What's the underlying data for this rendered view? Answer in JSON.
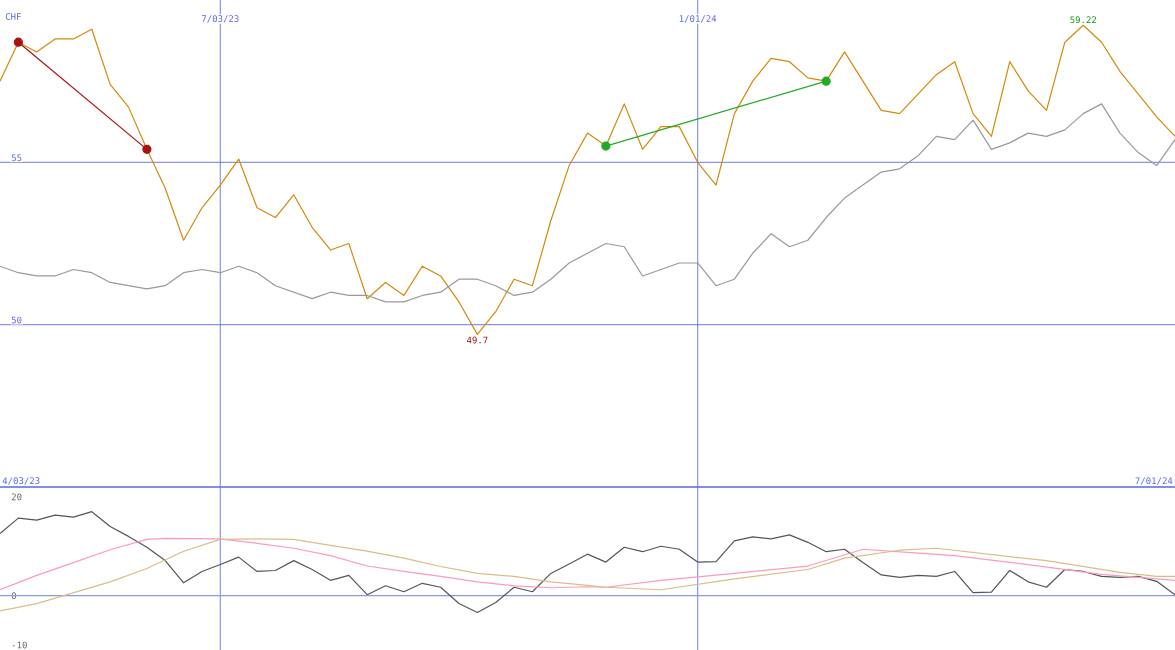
{
  "chart_data": [
    {
      "type": "line",
      "ylabel": "CHF",
      "xlim": [
        "2023-04-10",
        "2024-07-01"
      ],
      "ylim": [
        45,
        60
      ],
      "xticks": [
        {
          "value": "2023-07-03",
          "label": "7/03/23"
        },
        {
          "value": "2024-01-01",
          "label": "1/01/24"
        }
      ],
      "yticks": [
        50,
        55
      ],
      "grid": true,
      "x": [
        "2023-04-10",
        "2023-04-17",
        "2023-04-24",
        "2023-05-01",
        "2023-05-08",
        "2023-05-15",
        "2023-05-22",
        "2023-05-29",
        "2023-06-05",
        "2023-06-12",
        "2023-06-19",
        "2023-06-26",
        "2023-07-03",
        "2023-07-10",
        "2023-07-17",
        "2023-07-24",
        "2023-07-31",
        "2023-08-07",
        "2023-08-14",
        "2023-08-21",
        "2023-08-28",
        "2023-09-04",
        "2023-09-11",
        "2023-09-18",
        "2023-09-25",
        "2023-10-02",
        "2023-10-09",
        "2023-10-16",
        "2023-10-23",
        "2023-10-30",
        "2023-11-06",
        "2023-11-13",
        "2023-11-20",
        "2023-11-27",
        "2023-12-04",
        "2023-12-11",
        "2023-12-18",
        "2023-12-25",
        "2024-01-01",
        "2024-01-08",
        "2024-01-15",
        "2024-01-22",
        "2024-01-29",
        "2024-02-05",
        "2024-02-12",
        "2024-02-19",
        "2024-02-26",
        "2024-03-04",
        "2024-03-11",
        "2024-03-18",
        "2024-03-25",
        "2024-04-01",
        "2024-04-08",
        "2024-04-15",
        "2024-04-22",
        "2024-04-29",
        "2024-05-06",
        "2024-05-13",
        "2024-05-20",
        "2024-05-27",
        "2024-06-03",
        "2024-06-10",
        "2024-06-17",
        "2024-06-24",
        "2024-07-01"
      ],
      "series": [
        {
          "color": "#d4890a",
          "values": [
            57.5,
            58.7,
            58.4,
            58.8,
            58.8,
            59.1,
            57.4,
            56.7,
            55.4,
            54.2,
            52.6,
            53.6,
            54.3,
            55.1,
            53.6,
            53.3,
            54.0,
            53.0,
            52.3,
            52.5,
            50.8,
            51.3,
            50.9,
            51.8,
            51.5,
            50.7,
            49.7,
            50.4,
            51.4,
            51.2,
            53.2,
            54.9,
            55.9,
            55.5,
            56.8,
            55.4,
            56.1,
            56.1,
            55.0,
            54.3,
            56.5,
            57.5,
            58.2,
            58.1,
            57.6,
            57.5,
            58.4,
            57.5,
            56.6,
            56.5,
            57.1,
            57.7,
            58.1,
            56.5,
            55.8,
            58.1,
            57.2,
            56.6,
            58.7,
            59.22,
            58.7,
            57.8,
            57.1,
            56.4,
            55.8
          ]
        },
        {
          "color": "#999999",
          "values": [
            51.8,
            51.6,
            51.5,
            51.5,
            51.7,
            51.6,
            51.3,
            51.2,
            51.1,
            51.2,
            51.6,
            51.7,
            51.6,
            51.8,
            51.6,
            51.2,
            51.0,
            50.8,
            51.0,
            50.9,
            50.9,
            50.7,
            50.7,
            50.9,
            51.0,
            51.4,
            51.4,
            51.2,
            50.9,
            51.0,
            51.4,
            51.9,
            52.2,
            52.5,
            52.4,
            51.5,
            51.7,
            51.9,
            51.9,
            51.2,
            51.4,
            52.2,
            52.8,
            52.4,
            52.6,
            53.3,
            53.9,
            54.3,
            54.7,
            54.8,
            55.2,
            55.8,
            55.7,
            56.3,
            55.4,
            55.6,
            55.9,
            55.8,
            56.0,
            56.5,
            56.8,
            55.9,
            55.3,
            54.9,
            55.7
          ]
        },
        {
          "color": "#aa1111",
          "x": [
            "2023-04-17",
            "2023-06-05"
          ],
          "values": [
            58.7,
            55.4
          ],
          "marker": "circle"
        },
        {
          "color": "#22aa22",
          "x": [
            "2023-11-27",
            "2024-02-19"
          ],
          "values": [
            55.5,
            57.5
          ],
          "marker": "circle"
        }
      ],
      "annotations": [
        {
          "text": "59.22",
          "x": "2024-05-27",
          "y": 59.22
        },
        {
          "text": "49.7",
          "x": "2023-10-09",
          "y": 49.7
        }
      ]
    },
    {
      "type": "line",
      "xlim": [
        "2023-04-10",
        "2024-07-01"
      ],
      "ylim": [
        -11,
        22
      ],
      "xticks": [
        {
          "value": "2023-07-03",
          "label": null
        },
        {
          "value": "2024-01-01",
          "label": null
        }
      ],
      "yticks": [
        -10,
        0,
        20
      ],
      "grid": "x",
      "tick_labels": "y",
      "ref_lines": [
        {
          "axis": "y",
          "value": 0,
          "color": "#8899ee"
        }
      ],
      "x": [
        "2023-04-10",
        "2023-04-17",
        "2023-04-24",
        "2023-05-01",
        "2023-05-08",
        "2023-05-15",
        "2023-05-22",
        "2023-05-29",
        "2023-06-05",
        "2023-06-12",
        "2023-06-19",
        "2023-06-26",
        "2023-07-03",
        "2023-07-10",
        "2023-07-17",
        "2023-07-24",
        "2023-07-31",
        "2023-08-07",
        "2023-08-14",
        "2023-08-21",
        "2023-08-28",
        "2023-09-04",
        "2023-09-11",
        "2023-09-18",
        "2023-09-25",
        "2023-10-02",
        "2023-10-09",
        "2023-10-16",
        "2023-10-23",
        "2023-10-30",
        "2023-11-06",
        "2023-11-13",
        "2023-11-20",
        "2023-11-27",
        "2023-12-04",
        "2023-12-11",
        "2023-12-18",
        "2023-12-25",
        "2024-01-01",
        "2024-01-08",
        "2024-01-15",
        "2024-01-22",
        "2024-01-29",
        "2024-02-05",
        "2024-02-12",
        "2024-02-19",
        "2024-02-26",
        "2024-03-04",
        "2024-03-11",
        "2024-03-18",
        "2024-03-25",
        "2024-04-01",
        "2024-04-08",
        "2024-04-15",
        "2024-04-22",
        "2024-04-29",
        "2024-05-06",
        "2024-05-13",
        "2024-05-20",
        "2024-05-27",
        "2024-06-03",
        "2024-06-10",
        "2024-06-17",
        "2024-06-24",
        "2024-07-01"
      ],
      "series": [
        {
          "color": "#555555",
          "values": [
            12.6,
            15.7,
            15.3,
            16.3,
            15.9,
            17.0,
            14.0,
            12.0,
            9.8,
            7.1,
            2.6,
            4.9,
            6.3,
            7.8,
            4.9,
            5.1,
            7.1,
            5.3,
            3.1,
            4.1,
            0.2,
            2.0,
            0.8,
            2.5,
            1.7,
            -1.6,
            -3.4,
            -1.4,
            1.7,
            0.8,
            4.5,
            6.4,
            8.4,
            6.8,
            9.8,
            8.9,
            10.0,
            9.4,
            6.8,
            6.9,
            11.1,
            11.9,
            11.5,
            12.3,
            10.8,
            8.9,
            9.4,
            6.7,
            4.2,
            3.7,
            4.1,
            3.9,
            4.9,
            0.6,
            0.7,
            5.1,
            2.8,
            1.7,
            5.3,
            4.9,
            3.9,
            3.7,
            3.9,
            2.9,
            0.2
          ]
        },
        {
          "color": "#ff99bb",
          "x": [
            "2023-04-10",
            "2023-04-24",
            "2023-05-08",
            "2023-05-22",
            "2023-06-05",
            "2023-06-12",
            "2023-07-03",
            "2023-07-17",
            "2023-07-31",
            "2023-08-14",
            "2023-08-28",
            "2023-09-11",
            "2023-09-25",
            "2023-10-09",
            "2023-10-23",
            "2023-11-06",
            "2023-11-20",
            "2023-11-27",
            "2023-12-18",
            "2024-01-15",
            "2024-02-12",
            "2024-03-04",
            "2024-03-25",
            "2024-04-08",
            "2024-05-06",
            "2024-06-03",
            "2024-06-17",
            "2024-07-01"
          ],
          "values": [
            1.2,
            4.1,
            6.7,
            9.3,
            11.4,
            11.6,
            11.5,
            10.6,
            9.6,
            8.1,
            6.0,
            4.9,
            3.9,
            2.8,
            2.0,
            1.6,
            1.8,
            1.7,
            3.1,
            4.5,
            6.0,
            9.4,
            8.6,
            8.1,
            6.3,
            4.3,
            3.7,
            3.1
          ]
        },
        {
          "color": "#ddbb88",
          "x": [
            "2023-04-10",
            "2023-04-24",
            "2023-05-08",
            "2023-05-22",
            "2023-06-05",
            "2023-06-19",
            "2023-07-03",
            "2023-07-17",
            "2023-07-31",
            "2023-08-14",
            "2023-08-28",
            "2023-09-11",
            "2023-09-25",
            "2023-10-09",
            "2023-10-23",
            "2023-11-06",
            "2023-11-20",
            "2023-11-27",
            "2023-12-18",
            "2024-01-15",
            "2024-02-12",
            "2024-02-26",
            "2024-03-18",
            "2024-04-01",
            "2024-04-29",
            "2024-05-13",
            "2024-05-27",
            "2024-06-10",
            "2024-06-24",
            "2024-07-01"
          ],
          "values": [
            -3.1,
            -1.6,
            0.6,
            2.8,
            5.5,
            9.0,
            11.4,
            11.5,
            11.4,
            10.2,
            9.0,
            7.6,
            5.9,
            4.5,
            3.9,
            2.8,
            2.1,
            1.7,
            1.2,
            3.4,
            5.3,
            7.6,
            9.2,
            9.6,
            7.9,
            7.1,
            5.9,
            4.7,
            3.9,
            3.9
          ]
        }
      ],
      "annotations": [
        "4/03/23",
        "7/01/24"
      ]
    }
  ]
}
